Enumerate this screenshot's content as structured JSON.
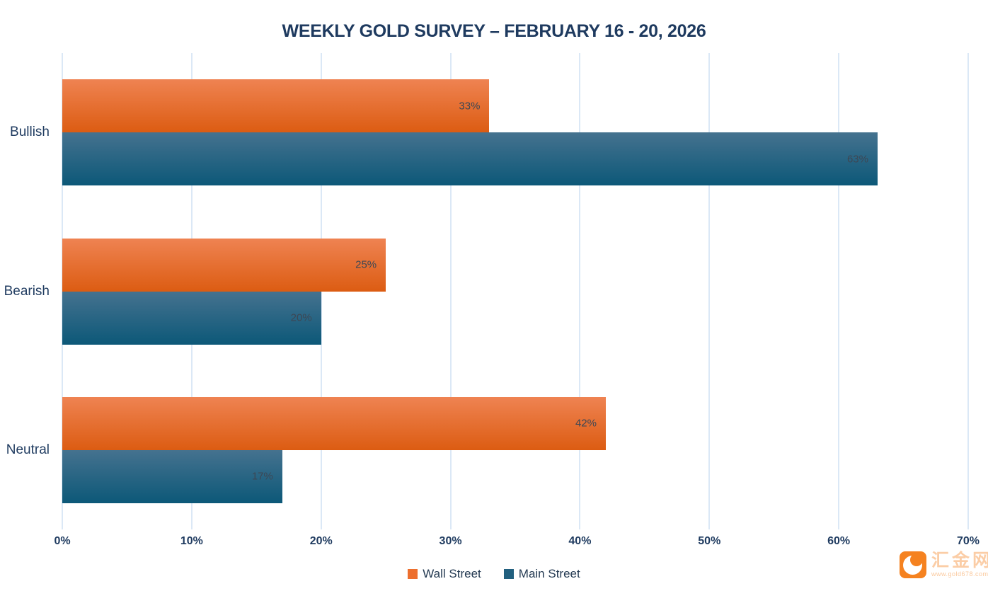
{
  "title": "WEEKLY GOLD SURVEY – FEBRUARY 16 - 20, 2026",
  "chart_data": {
    "type": "bar",
    "orientation": "horizontal",
    "title": "WEEKLY GOLD SURVEY – FEBRUARY 16 - 20, 2026",
    "categories": [
      "Bullish",
      "Bearish",
      "Neutral"
    ],
    "series": [
      {
        "name": "Wall Street",
        "values": [
          33,
          25,
          42
        ],
        "color_top": "#ef8352",
        "color_bottom": "#dc5c12",
        "legend_color": "#ed6f2e"
      },
      {
        "name": "Main Street",
        "values": [
          63,
          20,
          17
        ],
        "color_top": "#45728f",
        "color_bottom": "#0c5878",
        "legend_color": "#22607f"
      }
    ],
    "value_labels": [
      [
        "33%",
        "25%",
        "42%"
      ],
      [
        "63%",
        "20%",
        "17%"
      ]
    ],
    "value_suffix": "%",
    "xlim": [
      0,
      70
    ],
    "x_tick_step": 10,
    "x_tick_labels": [
      "0%",
      "10%",
      "20%",
      "30%",
      "40%",
      "50%",
      "60%",
      "70%"
    ],
    "grid": true,
    "gridline_color": "#dbe8f6",
    "legend_position": "bottom",
    "text_color": "#1e3a5f"
  },
  "watermark": {
    "site_name": "汇金网",
    "site_url": "www.gold678.com",
    "logo_color": "#f58220"
  }
}
